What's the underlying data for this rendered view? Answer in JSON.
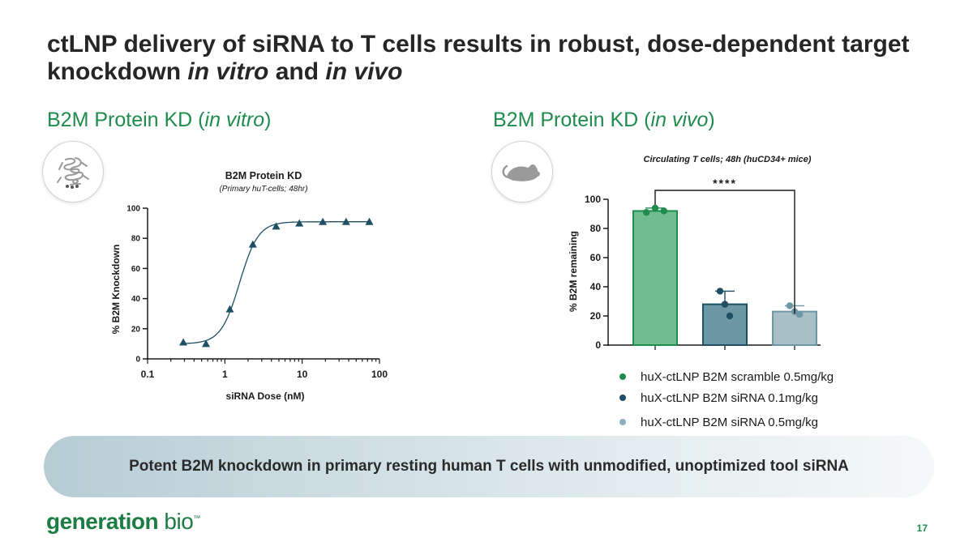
{
  "slide": {
    "title_line1": "ctLNP delivery of siRNA to T cells results in robust, dose-dependent target",
    "title_line2_a": "knockdown ",
    "title_line2_b": "in vitro",
    "title_line2_c": " and ",
    "title_line2_d": "in vivo",
    "left_head_a": "B2M Protein KD (",
    "left_head_b": "in vitro",
    "left_head_c": ")",
    "right_head_a": "B2M Protein KD (",
    "right_head_b": "in vivo",
    "right_head_c": ")",
    "banner_text": "Potent B2M knockdown in primary resting human T cells with unmodified, unoptimized tool siRNA",
    "logo_main": "generation",
    "logo_bio": " bio",
    "page_number": "17",
    "icons": {
      "left": "protein-structure-icon",
      "right": "mouse-icon"
    }
  },
  "chart_data": [
    {
      "type": "scatter",
      "title": "B2M Protein KD",
      "subtitle": "(Primary huT-cells; 48hr)",
      "xlabel": "siRNA Dose (nM)",
      "ylabel": "% B2M Knockdown",
      "xscale": "log",
      "xlim": [
        0.1,
        100
      ],
      "ylim": [
        0,
        100
      ],
      "xticks": [
        "0.1",
        "1",
        "10",
        "100"
      ],
      "yticks": [
        "0",
        "20",
        "40",
        "60",
        "80",
        "100"
      ],
      "points": {
        "x": [
          0.29,
          0.57,
          1.16,
          2.3,
          4.6,
          9.2,
          18.5,
          37,
          74
        ],
        "y": [
          11,
          10,
          33,
          76,
          88,
          90,
          91,
          91,
          91
        ]
      },
      "fit": {
        "bottom": 10,
        "top": 91,
        "ec50": 1.55,
        "hill": 3.6
      },
      "marker": "triangle",
      "color": "#1f4f63"
    },
    {
      "type": "bar",
      "title": "Circulating T cells; 48h (huCD34+ mice)",
      "ylabel": "% B2M remaining",
      "ylim": [
        0,
        100
      ],
      "yticks": [
        "0",
        "20",
        "40",
        "60",
        "80",
        "100"
      ],
      "categories": [
        "huX-ctLNP B2M scramble 0.5mg/kg",
        "huX-ctLNP B2M siRNA 0.1mg/kg",
        "huX-ctLNP B2M siRNA 0.5mg/kg"
      ],
      "values": [
        92,
        28,
        23
      ],
      "errors": [
        2,
        9,
        4
      ],
      "points": [
        [
          91,
          94,
          92
        ],
        [
          37,
          28,
          20
        ],
        [
          27,
          23,
          21
        ]
      ],
      "colors": [
        "#6fbd91",
        "#6e97a6",
        "#a9bfc6"
      ],
      "dot_colors": [
        "#1f8c4e",
        "#1f4f63",
        "#6e97a6"
      ],
      "significance": "****"
    }
  ]
}
